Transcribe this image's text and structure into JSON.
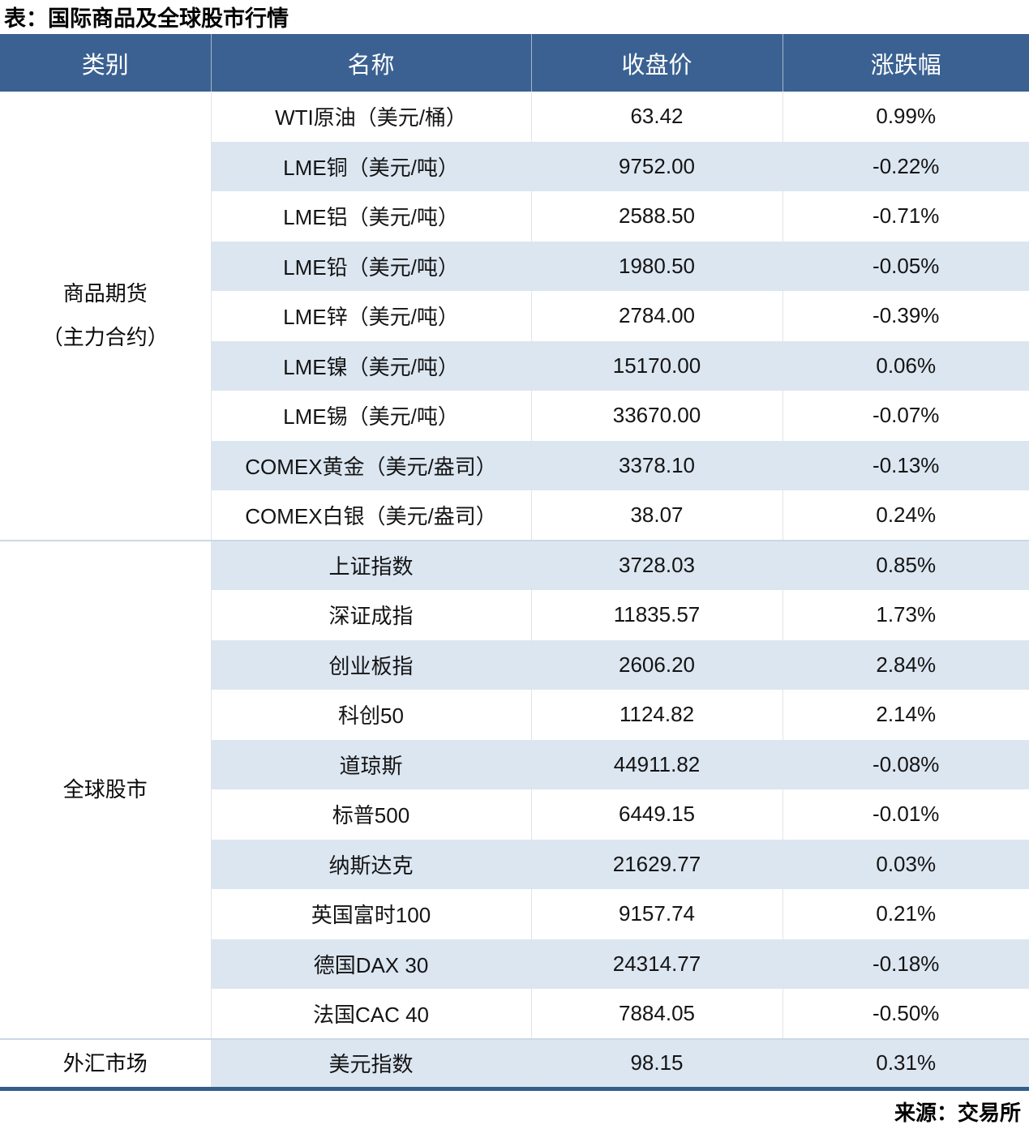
{
  "page": {
    "title": "表：国际商品及全球股市行情",
    "source": "来源：交易所"
  },
  "colors": {
    "header_bg": "#3A6191",
    "header_fg": "#FFFFFF",
    "stripe": "#DCE6F1",
    "up": "#C00000",
    "down": "#5A8A38",
    "bottom_border": "#325F8C",
    "section_divider": "#CBD8E6"
  },
  "table": {
    "headers": [
      "类别",
      "名称",
      "收盘价",
      "涨跌幅"
    ],
    "sections": [
      {
        "key": "commodity-futures",
        "category_lines": [
          "商品期货",
          "（主力合约）"
        ],
        "rows": [
          {
            "name": "WTI原油（美元/桶）",
            "close": "63.42",
            "change": "0.99%",
            "dir": "up"
          },
          {
            "name": "LME铜（美元/吨）",
            "close": "9752.00",
            "change": "-0.22%",
            "dir": "down"
          },
          {
            "name": "LME铝（美元/吨）",
            "close": "2588.50",
            "change": "-0.71%",
            "dir": "down"
          },
          {
            "name": "LME铅（美元/吨）",
            "close": "1980.50",
            "change": "-0.05%",
            "dir": "down"
          },
          {
            "name": "LME锌（美元/吨）",
            "close": "2784.00",
            "change": "-0.39%",
            "dir": "down"
          },
          {
            "name": "LME镍（美元/吨）",
            "close": "15170.00",
            "change": "0.06%",
            "dir": "up"
          },
          {
            "name": "LME锡（美元/吨）",
            "close": "33670.00",
            "change": "-0.07%",
            "dir": "down"
          },
          {
            "name": "COMEX黄金（美元/盎司）",
            "close": "3378.10",
            "change": "-0.13%",
            "dir": "down"
          },
          {
            "name": "COMEX白银（美元/盎司）",
            "close": "38.07",
            "change": "0.24%",
            "dir": "up"
          }
        ]
      },
      {
        "key": "global-stocks",
        "category_lines": [
          "全球股市"
        ],
        "rows": [
          {
            "name": "上证指数",
            "close": "3728.03",
            "change": "0.85%",
            "dir": "up"
          },
          {
            "name": "深证成指",
            "close": "11835.57",
            "change": "1.73%",
            "dir": "up"
          },
          {
            "name": "创业板指",
            "close": "2606.20",
            "change": "2.84%",
            "dir": "up"
          },
          {
            "name": "科创50",
            "close": "1124.82",
            "change": "2.14%",
            "dir": "up"
          },
          {
            "name": "道琼斯",
            "close": "44911.82",
            "change": "-0.08%",
            "dir": "down"
          },
          {
            "name": "标普500",
            "close": "6449.15",
            "change": "-0.01%",
            "dir": "down"
          },
          {
            "name": "纳斯达克",
            "close": "21629.77",
            "change": "0.03%",
            "dir": "up"
          },
          {
            "name": "英国富时100",
            "close": "9157.74",
            "change": "0.21%",
            "dir": "up"
          },
          {
            "name": "德国DAX 30",
            "close": "24314.77",
            "change": "-0.18%",
            "dir": "down"
          },
          {
            "name": "法国CAC 40",
            "close": "7884.05",
            "change": "-0.50%",
            "dir": "down"
          }
        ]
      },
      {
        "key": "forex-market",
        "category_lines": [
          "外汇市场"
        ],
        "rows": [
          {
            "name": "美元指数",
            "close": "98.15",
            "change": "0.31%",
            "dir": "up"
          }
        ]
      }
    ]
  },
  "chart_data": {
    "type": "table",
    "title": "表：国际商品及全球股市行情",
    "columns": [
      "类别",
      "名称",
      "收盘价",
      "涨跌幅"
    ],
    "rows": [
      [
        "商品期货（主力合约）",
        "WTI原油（美元/桶）",
        63.42,
        "0.99%"
      ],
      [
        "商品期货（主力合约）",
        "LME铜（美元/吨）",
        9752.0,
        "-0.22%"
      ],
      [
        "商品期货（主力合约）",
        "LME铝（美元/吨）",
        2588.5,
        "-0.71%"
      ],
      [
        "商品期货（主力合约）",
        "LME铅（美元/吨）",
        1980.5,
        "-0.05%"
      ],
      [
        "商品期货（主力合约）",
        "LME锌（美元/吨）",
        2784.0,
        "-0.39%"
      ],
      [
        "商品期货（主力合约）",
        "LME镍（美元/吨）",
        15170.0,
        "0.06%"
      ],
      [
        "商品期货（主力合约）",
        "LME锡（美元/吨）",
        33670.0,
        "-0.07%"
      ],
      [
        "商品期货（主力合约）",
        "COMEX黄金（美元/盎司）",
        3378.1,
        "-0.13%"
      ],
      [
        "商品期货（主力合约）",
        "COMEX白银（美元/盎司）",
        38.07,
        "0.24%"
      ],
      [
        "全球股市",
        "上证指数",
        3728.03,
        "0.85%"
      ],
      [
        "全球股市",
        "深证成指",
        11835.57,
        "1.73%"
      ],
      [
        "全球股市",
        "创业板指",
        2606.2,
        "2.84%"
      ],
      [
        "全球股市",
        "科创50",
        1124.82,
        "2.14%"
      ],
      [
        "全球股市",
        "道琼斯",
        44911.82,
        "-0.08%"
      ],
      [
        "全球股市",
        "标普500",
        6449.15,
        "-0.01%"
      ],
      [
        "全球股市",
        "纳斯达克",
        21629.77,
        "0.03%"
      ],
      [
        "全球股市",
        "英国富时100",
        9157.74,
        "0.21%"
      ],
      [
        "全球股市",
        "德国DAX 30",
        24314.77,
        "-0.18%"
      ],
      [
        "全球股市",
        "法国CAC 40",
        7884.05,
        "-0.50%"
      ],
      [
        "外汇市场",
        "美元指数",
        98.15,
        "0.31%"
      ]
    ],
    "source": "来源：交易所",
    "layout": {
      "striped_rows": true,
      "positive_color": "#C00000",
      "negative_color": "#5A8A38"
    }
  }
}
